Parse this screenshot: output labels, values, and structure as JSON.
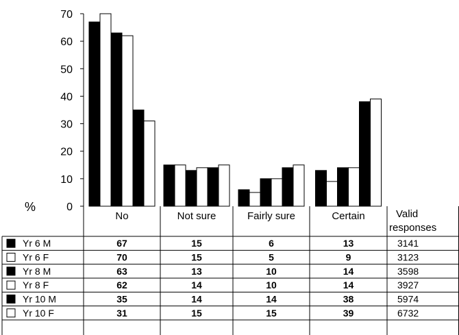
{
  "chart_data": {
    "type": "bar",
    "ylabel": "%",
    "ylim": [
      0,
      70
    ],
    "yticks": [
      "0",
      "10",
      "20",
      "30",
      "40",
      "50",
      "60",
      "70"
    ],
    "categories": [
      "No",
      "Not sure",
      "Fairly sure",
      "Certain"
    ],
    "extra_column_label": "Valid responses",
    "series": [
      {
        "name": "Yr 6 M",
        "fill": "#000000",
        "values": [
          67,
          15,
          6,
          13
        ],
        "valid": "3141"
      },
      {
        "name": "Yr 6 F",
        "fill": "#ffffff",
        "values": [
          70,
          15,
          5,
          9
        ],
        "valid": "3123"
      },
      {
        "name": "Yr 8 M",
        "fill": "#000000",
        "values": [
          63,
          13,
          10,
          14
        ],
        "valid": "3598"
      },
      {
        "name": "Yr 8 F",
        "fill": "#ffffff",
        "values": [
          62,
          14,
          10,
          14
        ],
        "valid": "3927"
      },
      {
        "name": "Yr 10 M",
        "fill": "#000000",
        "values": [
          35,
          14,
          14,
          38
        ],
        "valid": "5974"
      },
      {
        "name": "Yr 10 F",
        "fill": "#ffffff",
        "values": [
          31,
          15,
          15,
          39
        ],
        "valid": "6732"
      }
    ],
    "grid": false,
    "legend": "table-left"
  }
}
